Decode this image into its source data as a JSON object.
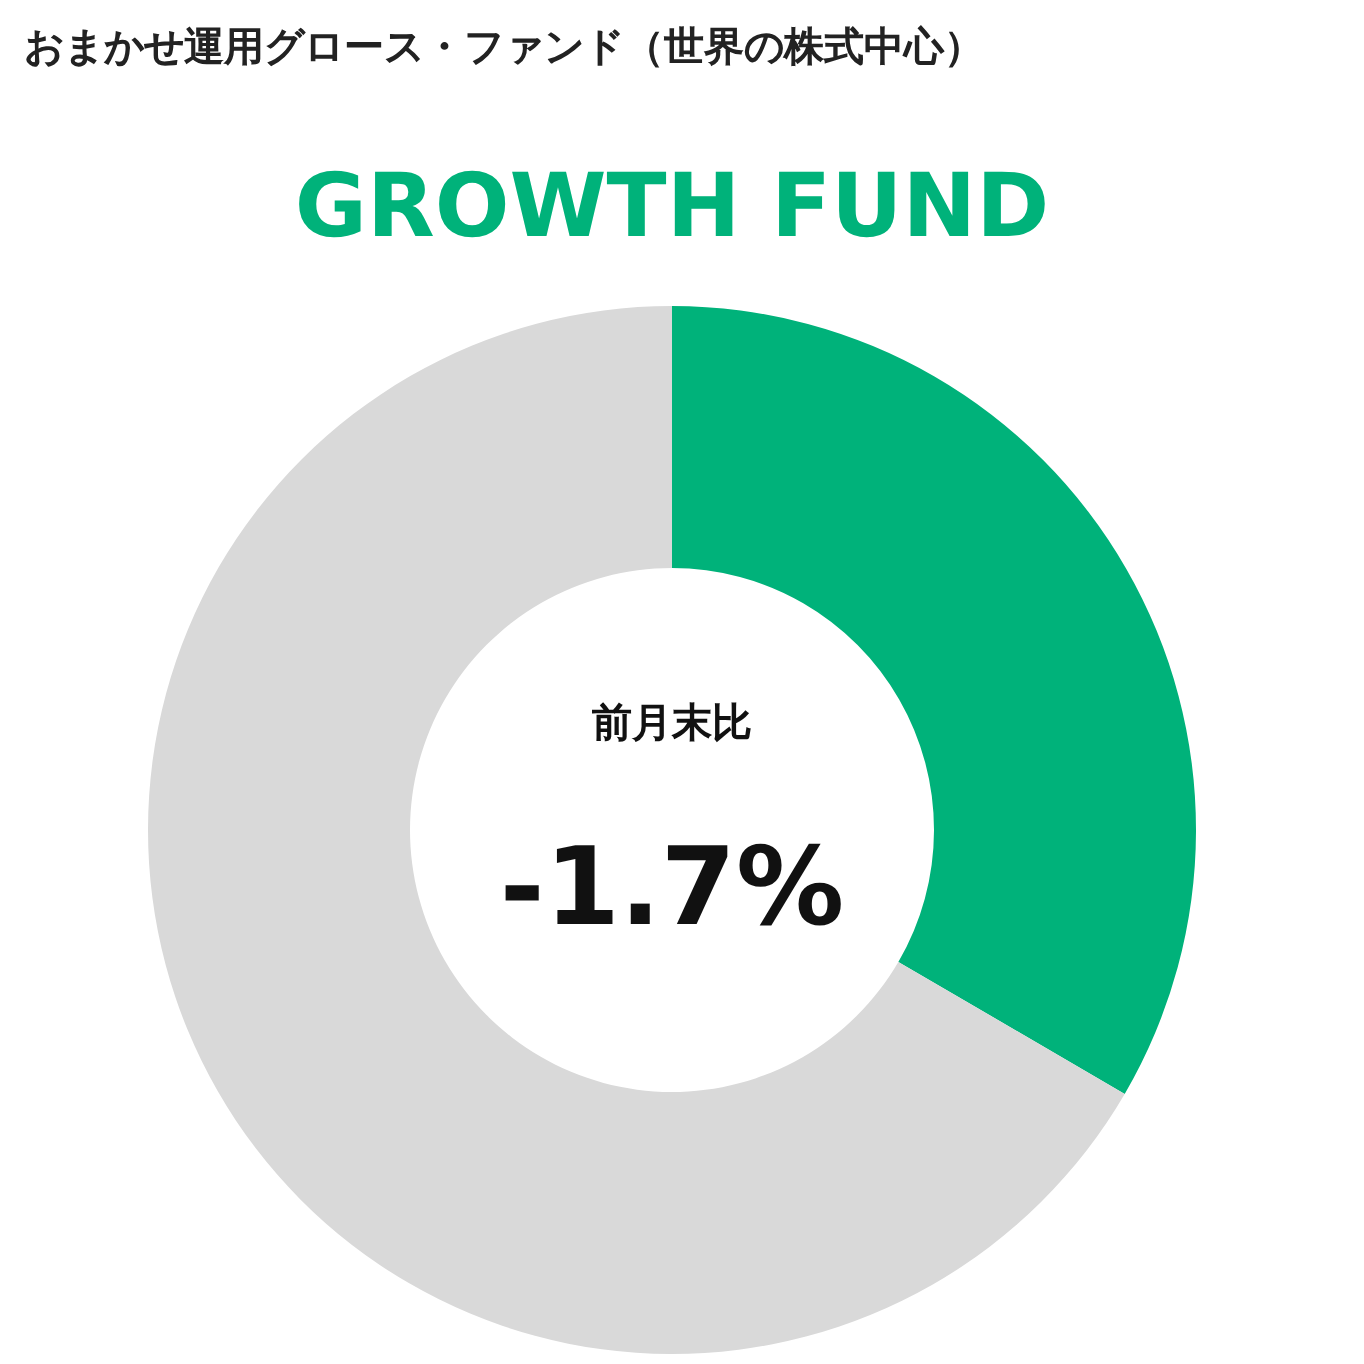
{
  "chart_data": {
    "type": "donut",
    "title": "おまかせ運用グロース・ファンド（世界の株式中心）",
    "subtitle": "GROWTH FUND",
    "categories": [
      null,
      null
    ],
    "values": [
      33.4,
      66.6
    ],
    "colors": [
      "#00b27a",
      "#d9d9d9"
    ],
    "annotations": [
      "前月末比",
      "-1.7%"
    ]
  }
}
